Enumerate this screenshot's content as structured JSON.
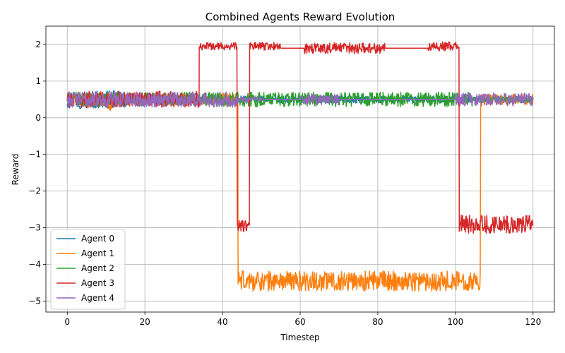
{
  "chart_data": {
    "type": "line",
    "title": "Combined Agents Reward Evolution",
    "xlabel": "Timestep",
    "ylabel": "Reward",
    "xlim": [
      -5.5,
      125.5
    ],
    "ylim": [
      -5.3,
      2.5
    ],
    "xticks": [
      0,
      20,
      40,
      60,
      80,
      100,
      120
    ],
    "yticks": [
      2,
      1,
      0,
      -1,
      -2,
      -3,
      -4,
      -5
    ],
    "grid": true,
    "legend_position": "lower-left",
    "series": [
      {
        "name": "Agent 0",
        "color": "#1f77b4",
        "segments": [
          {
            "x_start": 0,
            "x_end": 15,
            "mean": 0.5,
            "noise": 0.5
          },
          {
            "x_start": 15,
            "x_end": 120,
            "mean": 0.5,
            "noise": 0.2
          }
        ]
      },
      {
        "name": "Agent 1",
        "color": "#ff7f0e",
        "segments": [
          {
            "x_start": 0,
            "x_end": 10,
            "mean": 0.5,
            "noise": 0.35
          },
          {
            "x_start": 10,
            "x_end": 13,
            "mean": 0.45,
            "noise": 0.5
          },
          {
            "x_start": 13,
            "x_end": 44,
            "mean": 0.5,
            "noise": 0.35
          },
          {
            "x_start": 44,
            "x_end": 106.5,
            "mean": -4.45,
            "noise": 0.55
          },
          {
            "x_start": 106.5,
            "x_end": 120,
            "mean": 0.5,
            "noise": 0.3
          }
        ]
      },
      {
        "name": "Agent 2",
        "color": "#2ca02c",
        "segments": [
          {
            "x_start": 0,
            "x_end": 105,
            "mean": 0.5,
            "noise": 0.4
          },
          {
            "x_start": 105,
            "x_end": 120,
            "mean": 0.5,
            "noise": 0.15
          }
        ]
      },
      {
        "name": "Agent 3",
        "color": "#d62728",
        "segments": [
          {
            "x_start": 0,
            "x_end": 34,
            "mean": 0.5,
            "noise": 0.45
          },
          {
            "x_start": 34,
            "x_end": 43.8,
            "mean": 1.95,
            "noise": 0.2
          },
          {
            "x_start": 43.8,
            "x_end": 47,
            "mean": -2.95,
            "noise": 0.35
          },
          {
            "x_start": 47,
            "x_end": 55,
            "mean": 1.95,
            "noise": 0.22
          },
          {
            "x_start": 55,
            "x_end": 61,
            "mean": 1.9,
            "noise": 0.0
          },
          {
            "x_start": 61,
            "x_end": 82,
            "mean": 1.9,
            "noise": 0.3
          },
          {
            "x_start": 82,
            "x_end": 93,
            "mean": 1.9,
            "noise": 0.0
          },
          {
            "x_start": 93,
            "x_end": 101,
            "mean": 1.95,
            "noise": 0.25
          },
          {
            "x_start": 101,
            "x_end": 120,
            "mean": -2.9,
            "noise": 0.5
          }
        ]
      },
      {
        "name": "Agent 4",
        "color": "#9467bd",
        "segments": [
          {
            "x_start": 0,
            "x_end": 44,
            "mean": 0.5,
            "noise": 0.42
          },
          {
            "x_start": 44,
            "x_end": 50,
            "mean": 0.5,
            "noise": 0.15
          },
          {
            "x_start": 50,
            "x_end": 60,
            "mean": 0.5,
            "noise": 0.0
          },
          {
            "x_start": 60,
            "x_end": 70,
            "mean": 0.5,
            "noise": 0.3
          },
          {
            "x_start": 70,
            "x_end": 100,
            "mean": 0.5,
            "noise": 0.0
          },
          {
            "x_start": 100,
            "x_end": 120,
            "mean": 0.5,
            "noise": 0.35
          }
        ]
      }
    ]
  }
}
